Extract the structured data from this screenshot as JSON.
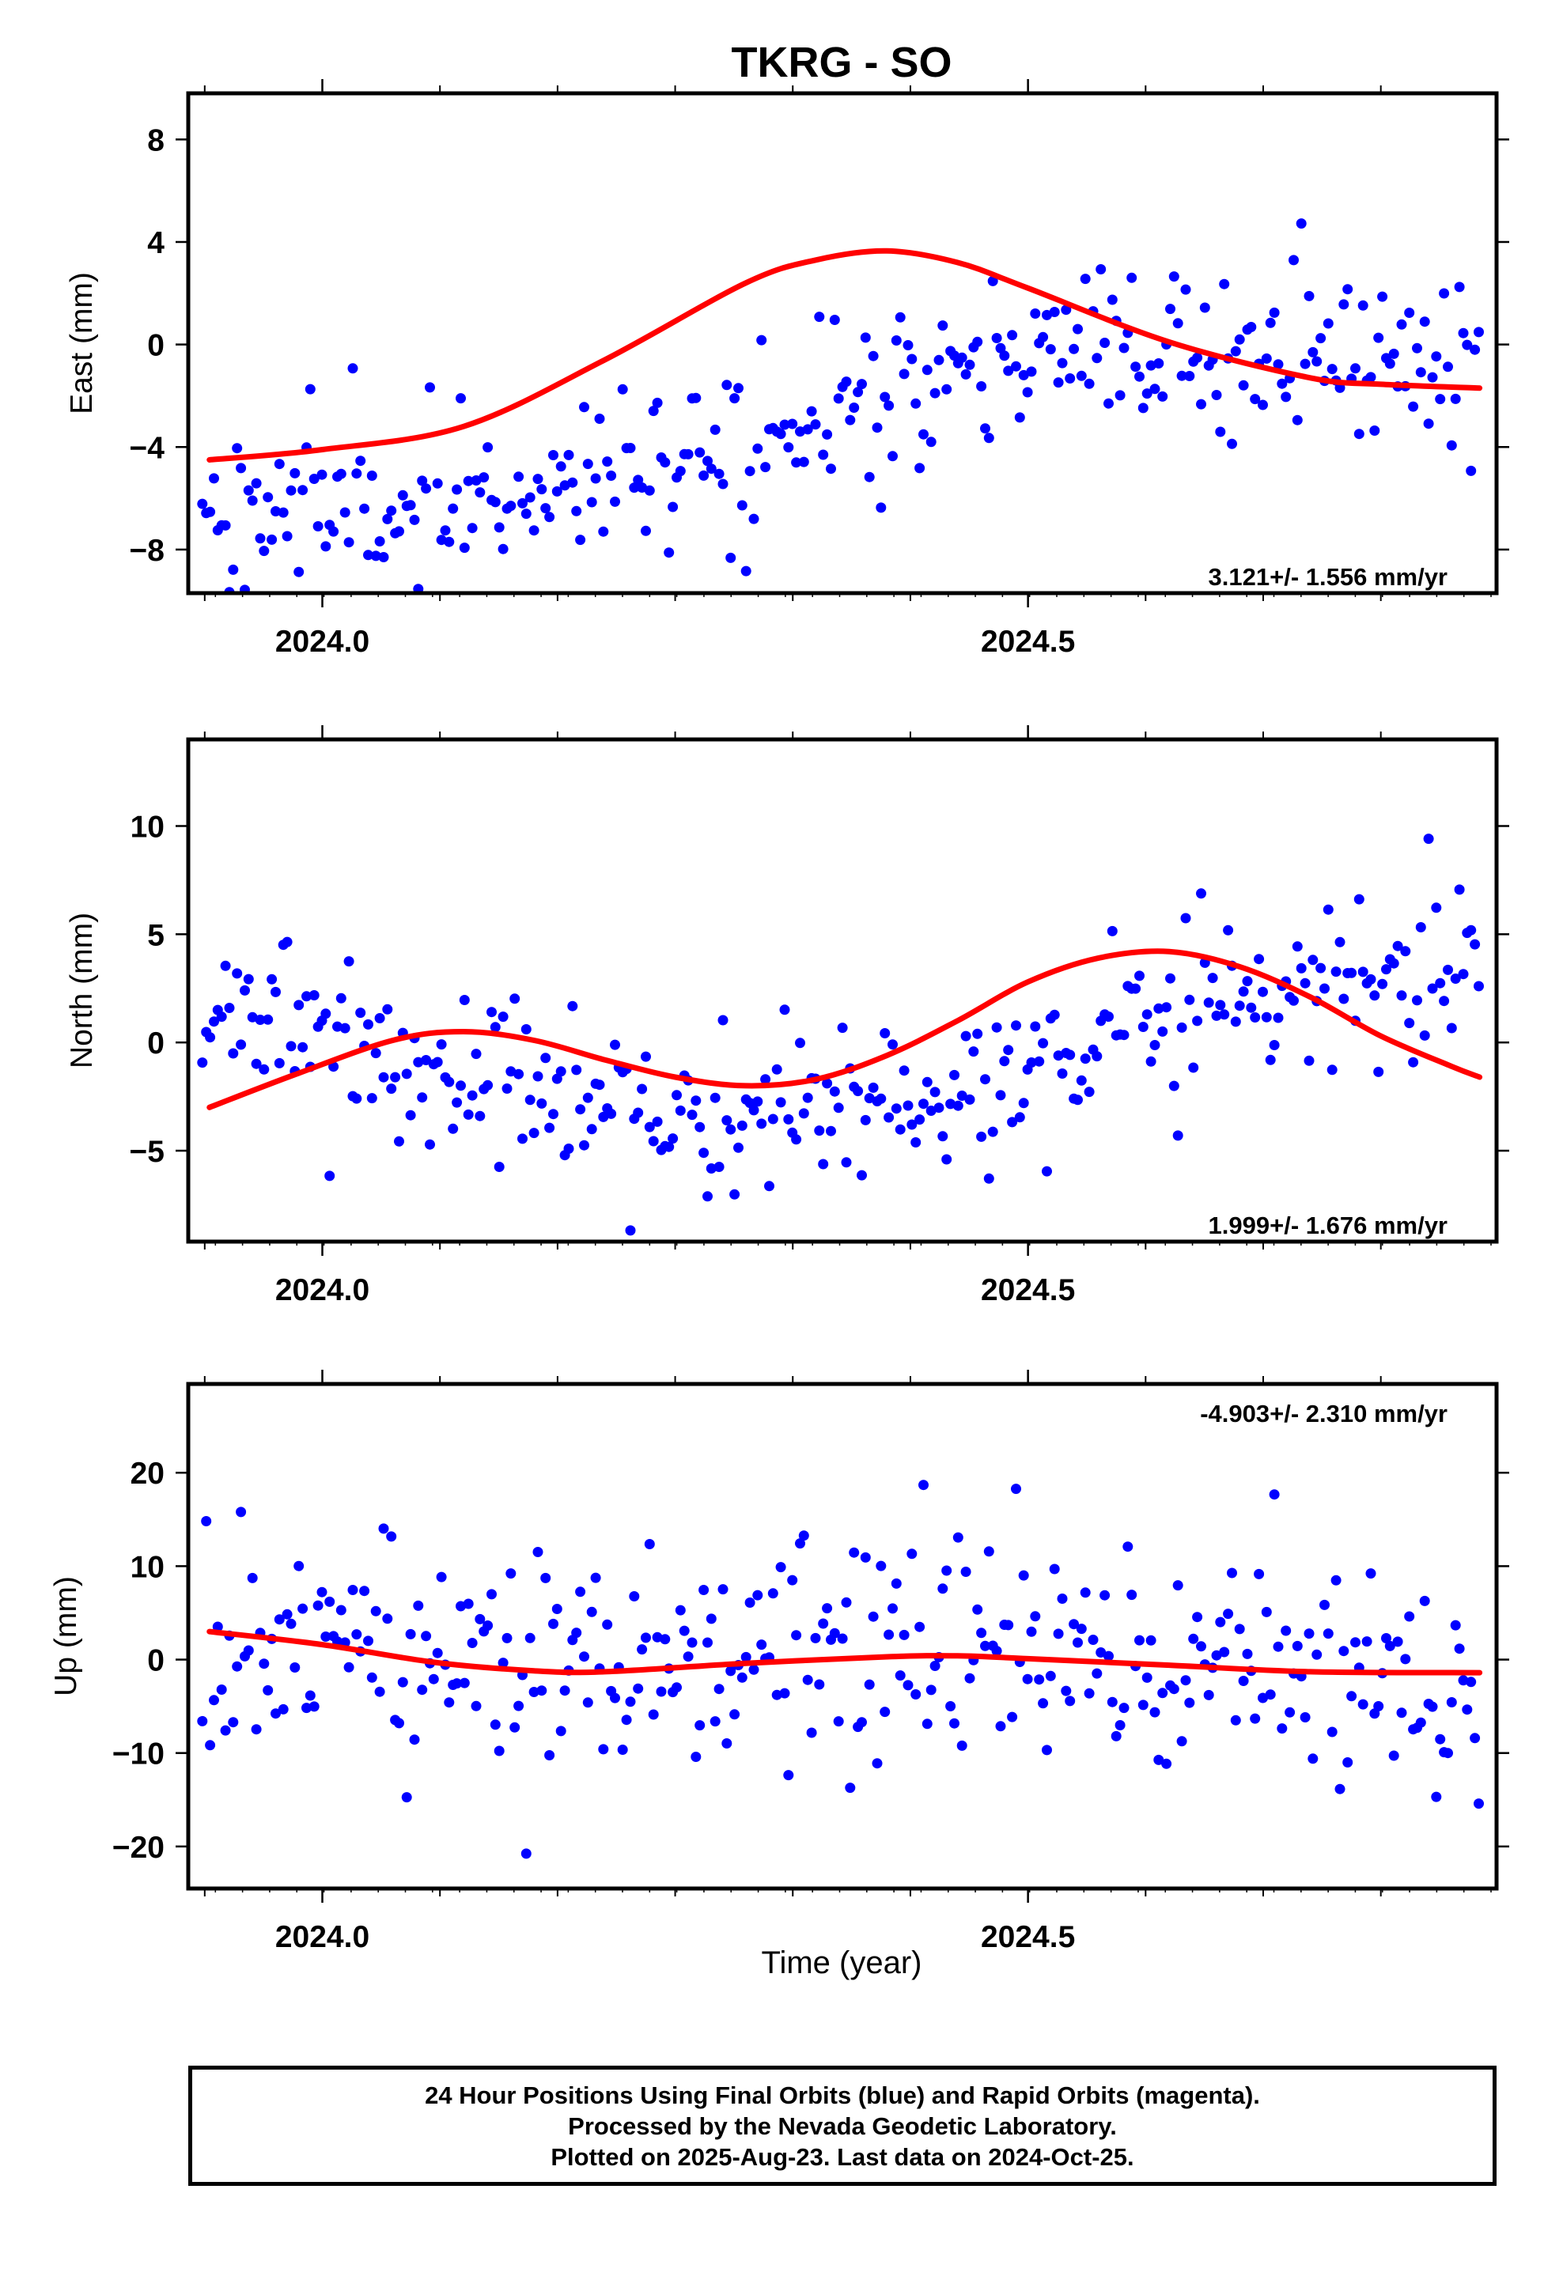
{
  "page": {
    "title": "TKRG - SO",
    "xlabel": "Time (year)"
  },
  "chart_data": [
    {
      "type": "scatter",
      "component": "east",
      "ylabel": "East (mm)",
      "xlim": [
        2023.905,
        2024.832
      ],
      "ylim": [
        -9.7,
        9.8
      ],
      "yticks": [
        -8,
        -4,
        0,
        4,
        8
      ],
      "ytick_labels": [
        "−8",
        "−4",
        "0",
        "4",
        "8"
      ],
      "xticks": [
        2024.0,
        2024.5
      ],
      "xtick_labels": [
        "2024.0",
        "2024.5"
      ],
      "rate_label": "3.121+/- 1.556 mm/yr",
      "series": [
        {
          "role": "positions",
          "color": "#0000ff",
          "params": {
            "base": -4.5,
            "slope": 3.121,
            "amp": 2.4,
            "phase": 2.05,
            "noise": 1.55,
            "seed": 11
          }
        },
        {
          "role": "model",
          "color": "#ff0000",
          "points": [
            [
              2023.92,
              -4.5
            ],
            [
              2024.0,
              -4.1
            ],
            [
              2024.1,
              -3.2
            ],
            [
              2024.2,
              -0.6
            ],
            [
              2024.3,
              2.4
            ],
            [
              2024.35,
              3.3
            ],
            [
              2024.4,
              3.65
            ],
            [
              2024.45,
              3.2
            ],
            [
              2024.5,
              2.2
            ],
            [
              2024.6,
              0.1
            ],
            [
              2024.7,
              -1.3
            ],
            [
              2024.75,
              -1.55
            ],
            [
              2024.82,
              -1.7
            ]
          ]
        }
      ]
    },
    {
      "type": "scatter",
      "component": "north",
      "ylabel": "North (mm)",
      "xlim": [
        2023.905,
        2024.832
      ],
      "ylim": [
        -9.2,
        14.0
      ],
      "yticks": [
        -5,
        0,
        5,
        10
      ],
      "ytick_labels": [
        "−5",
        "0",
        "5",
        "10"
      ],
      "xticks": [
        2024.0,
        2024.5
      ],
      "xtick_labels": [
        "2024.0",
        "2024.5"
      ],
      "rate_label": "1.999+/- 1.676 mm/yr",
      "series": [
        {
          "role": "positions",
          "color": "#0000ff",
          "params": {
            "base": -1.3,
            "slope": 1.999,
            "amp": 2.8,
            "phase": 3.55,
            "noise": 1.7,
            "seed": 23
          }
        },
        {
          "role": "model",
          "color": "#ff0000",
          "points": [
            [
              2023.92,
              -3.0
            ],
            [
              2023.98,
              -1.5
            ],
            [
              2024.05,
              0.1
            ],
            [
              2024.1,
              0.5
            ],
            [
              2024.15,
              0.1
            ],
            [
              2024.2,
              -0.8
            ],
            [
              2024.25,
              -1.6
            ],
            [
              2024.3,
              -2.0
            ],
            [
              2024.35,
              -1.7
            ],
            [
              2024.4,
              -0.6
            ],
            [
              2024.45,
              1.0
            ],
            [
              2024.5,
              2.8
            ],
            [
              2024.55,
              3.9
            ],
            [
              2024.6,
              4.2
            ],
            [
              2024.65,
              3.5
            ],
            [
              2024.7,
              2.1
            ],
            [
              2024.75,
              0.3
            ],
            [
              2024.8,
              -1.1
            ],
            [
              2024.82,
              -1.6
            ]
          ]
        }
      ]
    },
    {
      "type": "scatter",
      "component": "up",
      "ylabel": "Up (mm)",
      "xlim": [
        2023.905,
        2024.832
      ],
      "ylim": [
        -24.5,
        29.5
      ],
      "yticks": [
        -20,
        -10,
        0,
        10,
        20
      ],
      "ytick_labels": [
        "−20",
        "−10",
        "0",
        "10",
        "20"
      ],
      "xticks": [
        2024.0,
        2024.5
      ],
      "xtick_labels": [
        "2024.0",
        "2024.5"
      ],
      "rate_label": "-4.903+/- 2.310 mm/yr",
      "series": [
        {
          "role": "positions",
          "color": "#0000ff",
          "params": {
            "base": 1.5,
            "slope": -4.903,
            "amp": 1.6,
            "phase": 1.4,
            "noise": 6.0,
            "seed": 37
          }
        },
        {
          "role": "model",
          "color": "#ff0000",
          "points": [
            [
              2023.92,
              3.0
            ],
            [
              2024.0,
              1.6
            ],
            [
              2024.08,
              -0.3
            ],
            [
              2024.15,
              -1.2
            ],
            [
              2024.2,
              -1.3
            ],
            [
              2024.3,
              -0.4
            ],
            [
              2024.4,
              0.3
            ],
            [
              2024.45,
              0.4
            ],
            [
              2024.5,
              0.1
            ],
            [
              2024.6,
              -0.6
            ],
            [
              2024.7,
              -1.3
            ],
            [
              2024.82,
              -1.4
            ]
          ]
        }
      ]
    }
  ],
  "footer": {
    "line1": "24 Hour Positions Using Final Orbits (blue) and Rapid Orbits (magenta).",
    "line2": "Processed by the Nevada Geodetic Laboratory.",
    "line3": "Plotted on 2025-Aug-23. Last data on 2024-Oct-25."
  }
}
